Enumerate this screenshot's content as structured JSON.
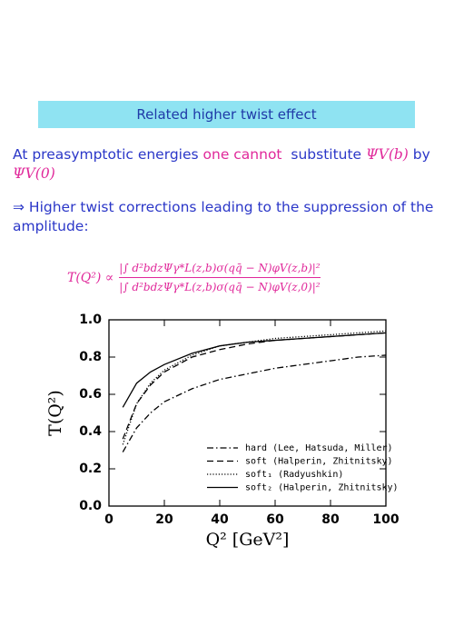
{
  "slide": {
    "banner": "Related higher twist effect",
    "paragraph1": [
      "At preasymptotic energies",
      "one cannot",
      "substitute",
      "ΨV(b)",
      "by",
      "ΨV(0)"
    ],
    "paragraph2": "⇒ Higher twist corrections leading to the suppression of the amplitude:",
    "formula": {
      "lhs": "T(Q²) ∝",
      "numerator": "|∫ d²bdzΨγ*L(z,b)σ(qq̄ − N)φV(z,b)|²",
      "denominator": "|∫ d²bdzΨγ*L(z,b)σ(qq̄ − N)φV(z,0)|²"
    }
  },
  "chart_data": {
    "type": "line",
    "x_label": "Q² [GeV²]",
    "y_label": "T(Q²)",
    "x": [
      5,
      10,
      15,
      20,
      30,
      40,
      50,
      60,
      70,
      80,
      90,
      100
    ],
    "series": [
      {
        "name": "hard (Lee, Hatsuda, Miller)",
        "color": "#000000",
        "dash": "dashdot",
        "values": [
          0.29,
          0.42,
          0.5,
          0.56,
          0.63,
          0.68,
          0.71,
          0.74,
          0.76,
          0.78,
          0.8,
          0.81
        ]
      },
      {
        "name": "soft (Halperin, Zhitnitsky)",
        "color": "#000000",
        "dash": "dashed",
        "values": [
          0.36,
          0.55,
          0.65,
          0.72,
          0.8,
          0.84,
          0.87,
          0.89,
          0.9,
          0.91,
          0.92,
          0.93
        ]
      },
      {
        "name": "soft₁ (Radyushkin)",
        "color": "#000000",
        "dash": "dotted",
        "values": [
          0.33,
          0.55,
          0.66,
          0.73,
          0.81,
          0.86,
          0.88,
          0.9,
          0.91,
          0.92,
          0.93,
          0.94
        ]
      },
      {
        "name": "soft₂ (Halperin, Zhitnitsky)",
        "color": "#000000",
        "dash": "solid",
        "values": [
          0.53,
          0.66,
          0.72,
          0.76,
          0.82,
          0.86,
          0.88,
          0.89,
          0.9,
          0.91,
          0.92,
          0.93
        ]
      }
    ],
    "xlim": [
      0,
      100
    ],
    "xticks": [
      0,
      20,
      40,
      60,
      80,
      100
    ],
    "ylim": [
      0,
      1
    ],
    "yticks": [
      {
        "value": 0,
        "label": "0.0"
      },
      0.2,
      0.4,
      0.6,
      0.8,
      {
        "value": 1,
        "label": "1.0"
      }
    ],
    "legend": "lower-right"
  }
}
